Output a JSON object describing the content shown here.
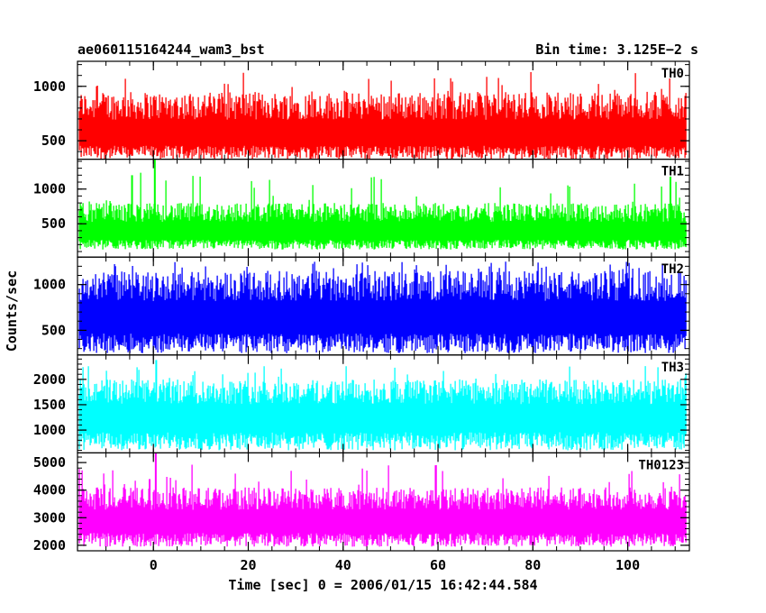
{
  "header": {
    "left_title": "ae060115164244_wam3_bst",
    "right_title": "Bin time: 3.125E−2 s"
  },
  "chart_data": {
    "type": "line",
    "xlabel": "Time [sec] 0 = 2006/01/15 16:42:44.584",
    "ylabel": "Counts/sec",
    "xlim": [
      -16,
      113
    ],
    "x_ticks": [
      0,
      20,
      40,
      60,
      80,
      100
    ],
    "x_tick_labels": [
      "0",
      "20",
      "40",
      "60",
      "80",
      "100"
    ],
    "data_x_range": [
      -15.6,
      112.4
    ],
    "bin_time_s": 0.03125,
    "panels": [
      {
        "name": "TH0",
        "color": "#ff0000",
        "ylim": [
          330,
          1230
        ],
        "y_ticks": [
          500,
          1000
        ],
        "y_tick_labels": [
          "500",
          "1000"
        ],
        "mean": 555,
        "low": 330,
        "high": 1230,
        "typical_high": 950,
        "spikes": []
      },
      {
        "name": "TH1",
        "color": "#00ff00",
        "ylim": [
          20,
          1430
        ],
        "y_ticks": [
          500,
          1000
        ],
        "y_tick_labels": [
          "500",
          "1000"
        ],
        "mean": 380,
        "low": 130,
        "high": 1430,
        "typical_high": 800,
        "spikes": [
          {
            "x": 0.3,
            "y": 1430
          },
          {
            "x": -4.5,
            "y": 1200
          },
          {
            "x": 109,
            "y": 1180
          }
        ]
      },
      {
        "name": "TH2",
        "color": "#0000ff",
        "ylim": [
          230,
          1300
        ],
        "y_ticks": [
          500,
          1000
        ],
        "y_tick_labels": [
          "500",
          "1000"
        ],
        "mean": 640,
        "low": 250,
        "high": 1300,
        "typical_high": 1150,
        "spikes": []
      },
      {
        "name": "TH3",
        "color": "#00ffff",
        "ylim": [
          550,
          2480
        ],
        "y_ticks": [
          1000,
          1500,
          2000
        ],
        "y_tick_labels": [
          "1000",
          "1500",
          "2000"
        ],
        "mean": 1250,
        "low": 600,
        "high": 2380,
        "typical_high": 2000,
        "spikes": [
          {
            "x": 0.6,
            "y": 2380
          }
        ]
      },
      {
        "name": "TH0123",
        "color": "#ff00ff",
        "ylim": [
          1800,
          5350
        ],
        "y_ticks": [
          2000,
          3000,
          4000,
          5000
        ],
        "y_tick_labels": [
          "2000",
          "3000",
          "4000",
          "5000"
        ],
        "mean": 2850,
        "low": 1950,
        "high": 5350,
        "typical_high": 4100,
        "spikes": [
          {
            "x": 0.5,
            "y": 5350
          },
          {
            "x": -0.8,
            "y": 4400
          }
        ]
      }
    ]
  }
}
